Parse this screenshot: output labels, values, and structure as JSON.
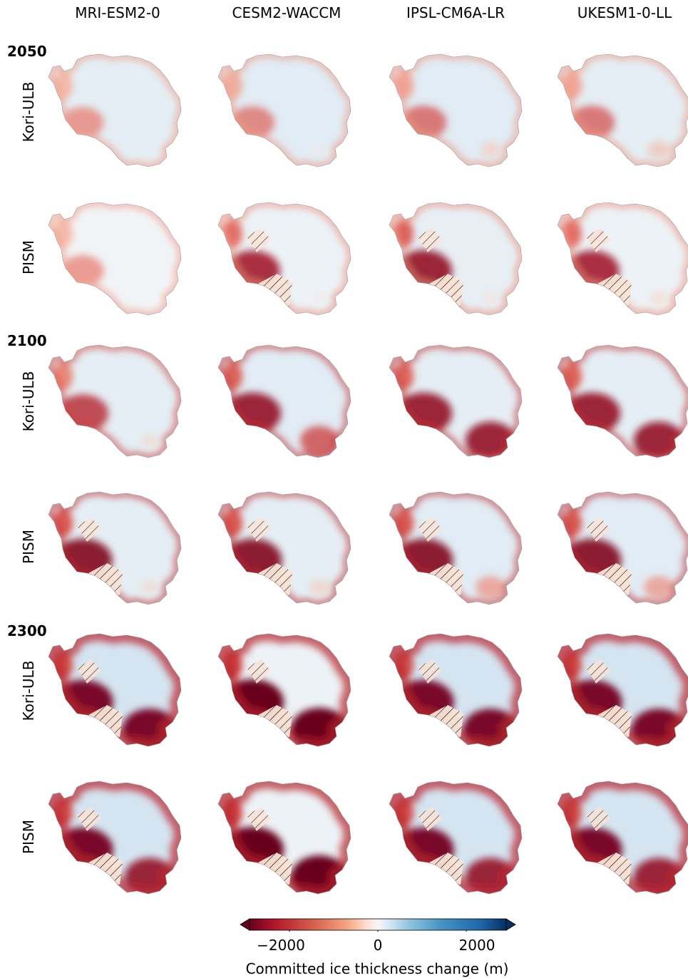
{
  "chart_data": {
    "type": "heatmap",
    "columns": [
      "MRI-ESM2-0",
      "CESM2-WACCM",
      "IPSL-CM6A-LR",
      "UKESM1-0-LL"
    ],
    "years": [
      "2050",
      "2100",
      "2300"
    ],
    "models": [
      "Kori-ULB",
      "PISM"
    ],
    "colorbar": {
      "colormap": "RdBu",
      "range": [
        -2500,
        2500
      ],
      "ticks": [
        "−2000",
        "0",
        "2000"
      ],
      "tick_values": [
        -2000,
        0,
        2000
      ],
      "extend": "both",
      "label": "Committed ice thickness change (m)"
    },
    "panels": [
      {
        "year": "2050",
        "model": "Kori-ULB",
        "gcm": "MRI-ESM2-0",
        "wais_loss": 0.45,
        "wilkes_loss": 0.0,
        "ross_hatch": false,
        "interior_gain": 0.1
      },
      {
        "year": "2050",
        "model": "Kori-ULB",
        "gcm": "CESM2-WACCM",
        "wais_loss": 0.5,
        "wilkes_loss": 0.05,
        "ross_hatch": false,
        "interior_gain": 0.12
      },
      {
        "year": "2050",
        "model": "Kori-ULB",
        "gcm": "IPSL-CM6A-LR",
        "wais_loss": 0.55,
        "wilkes_loss": 0.2,
        "ross_hatch": false,
        "interior_gain": 0.12
      },
      {
        "year": "2050",
        "model": "Kori-ULB",
        "gcm": "UKESM1-0-LL",
        "wais_loss": 0.55,
        "wilkes_loss": 0.25,
        "ross_hatch": false,
        "interior_gain": 0.1
      },
      {
        "year": "2050",
        "model": "PISM",
        "gcm": "MRI-ESM2-0",
        "wais_loss": 0.45,
        "wilkes_loss": 0.0,
        "ross_hatch": false,
        "interior_gain": 0.02
      },
      {
        "year": "2050",
        "model": "PISM",
        "gcm": "CESM2-WACCM",
        "wais_loss": 0.8,
        "wilkes_loss": 0.05,
        "ross_hatch": true,
        "interior_gain": 0.05
      },
      {
        "year": "2050",
        "model": "PISM",
        "gcm": "IPSL-CM6A-LR",
        "wais_loss": 0.85,
        "wilkes_loss": 0.1,
        "ross_hatch": true,
        "interior_gain": 0.08
      },
      {
        "year": "2050",
        "model": "PISM",
        "gcm": "UKESM1-0-LL",
        "wais_loss": 0.8,
        "wilkes_loss": 0.15,
        "ross_hatch": true,
        "interior_gain": 0.05
      },
      {
        "year": "2100",
        "model": "Kori-ULB",
        "gcm": "MRI-ESM2-0",
        "wais_loss": 0.7,
        "wilkes_loss": 0.15,
        "ross_hatch": false,
        "interior_gain": 0.1
      },
      {
        "year": "2100",
        "model": "Kori-ULB",
        "gcm": "CESM2-WACCM",
        "wais_loss": 0.85,
        "wilkes_loss": 0.6,
        "ross_hatch": false,
        "interior_gain": 0.12
      },
      {
        "year": "2100",
        "model": "Kori-ULB",
        "gcm": "IPSL-CM6A-LR",
        "wais_loss": 0.85,
        "wilkes_loss": 0.85,
        "ross_hatch": false,
        "interior_gain": 0.1
      },
      {
        "year": "2100",
        "model": "Kori-ULB",
        "gcm": "UKESM1-0-LL",
        "wais_loss": 0.85,
        "wilkes_loss": 0.85,
        "ross_hatch": false,
        "interior_gain": 0.1
      },
      {
        "year": "2100",
        "model": "PISM",
        "gcm": "MRI-ESM2-0",
        "wais_loss": 0.9,
        "wilkes_loss": 0.15,
        "ross_hatch": true,
        "interior_gain": 0.1
      },
      {
        "year": "2100",
        "model": "PISM",
        "gcm": "CESM2-WACCM",
        "wais_loss": 0.9,
        "wilkes_loss": 0.2,
        "ross_hatch": true,
        "interior_gain": 0.1
      },
      {
        "year": "2100",
        "model": "PISM",
        "gcm": "IPSL-CM6A-LR",
        "wais_loss": 0.9,
        "wilkes_loss": 0.4,
        "ross_hatch": true,
        "interior_gain": 0.12
      },
      {
        "year": "2100",
        "model": "PISM",
        "gcm": "UKESM1-0-LL",
        "wais_loss": 0.9,
        "wilkes_loss": 0.4,
        "ross_hatch": true,
        "interior_gain": 0.12
      },
      {
        "year": "2300",
        "model": "Kori-ULB",
        "gcm": "MRI-ESM2-0",
        "wais_loss": 0.95,
        "wilkes_loss": 0.95,
        "ross_hatch": true,
        "interior_gain": 0.2
      },
      {
        "year": "2300",
        "model": "Kori-ULB",
        "gcm": "CESM2-WACCM",
        "wais_loss": 1.0,
        "wilkes_loss": 1.0,
        "ross_hatch": true,
        "interior_gain": 0.05
      },
      {
        "year": "2300",
        "model": "Kori-ULB",
        "gcm": "IPSL-CM6A-LR",
        "wais_loss": 0.95,
        "wilkes_loss": 0.95,
        "ross_hatch": true,
        "interior_gain": 0.2
      },
      {
        "year": "2300",
        "model": "Kori-ULB",
        "gcm": "UKESM1-0-LL",
        "wais_loss": 0.95,
        "wilkes_loss": 0.95,
        "ross_hatch": true,
        "interior_gain": 0.2
      },
      {
        "year": "2300",
        "model": "PISM",
        "gcm": "MRI-ESM2-0",
        "wais_loss": 0.95,
        "wilkes_loss": 0.85,
        "ross_hatch": true,
        "interior_gain": 0.2
      },
      {
        "year": "2300",
        "model": "PISM",
        "gcm": "CESM2-WACCM",
        "wais_loss": 1.0,
        "wilkes_loss": 1.0,
        "ross_hatch": true,
        "interior_gain": 0.05
      },
      {
        "year": "2300",
        "model": "PISM",
        "gcm": "IPSL-CM6A-LR",
        "wais_loss": 0.95,
        "wilkes_loss": 0.85,
        "ross_hatch": true,
        "interior_gain": 0.2
      },
      {
        "year": "2300",
        "model": "PISM",
        "gcm": "UKESM1-0-LL",
        "wais_loss": 0.95,
        "wilkes_loss": 0.85,
        "ross_hatch": true,
        "interior_gain": 0.2
      }
    ]
  }
}
